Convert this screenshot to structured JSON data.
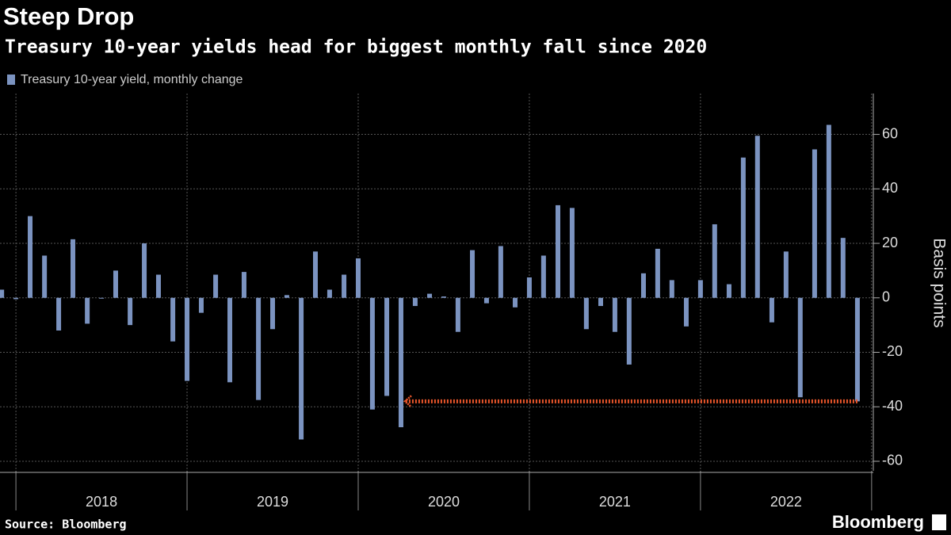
{
  "chart_data": {
    "type": "bar",
    "title": "Steep Drop",
    "subtitle": "Treasury 10-year yields head for biggest monthly fall since 2020",
    "y_axis_label": "Basis points",
    "source": "Source: Bloomberg",
    "logo": "Bloomberg",
    "series": [
      {
        "name": "Treasury 10-year yield, monthly change",
        "color": "#7b93c0",
        "values": [
          3,
          -0.5,
          30,
          15.5,
          -12,
          21.5,
          -9.5,
          -0.3,
          10,
          -10,
          20,
          8.5,
          -16,
          -30.5,
          -5.5,
          8.5,
          -31,
          9.5,
          -37.5,
          -11.5,
          1,
          -52,
          17,
          3,
          8.5,
          14.5,
          -41,
          -36,
          -47.5,
          -3,
          1.5,
          0.5,
          -12.5,
          17.5,
          -2,
          19,
          -3.5,
          7.5,
          15.5,
          34,
          33,
          -11.5,
          -3,
          -12.5,
          -24.5,
          9,
          18,
          6.5,
          -10.5,
          6.5,
          27,
          5,
          51.5,
          59.5,
          -9,
          17,
          -36.5,
          54.5,
          63.5,
          22,
          -38
        ]
      }
    ],
    "x": [
      2017.917,
      2018.0,
      2018.083,
      2018.167,
      2018.25,
      2018.333,
      2018.417,
      2018.5,
      2018.583,
      2018.667,
      2018.75,
      2018.833,
      2018.917,
      2019.0,
      2019.083,
      2019.167,
      2019.25,
      2019.333,
      2019.417,
      2019.5,
      2019.583,
      2019.667,
      2019.75,
      2019.833,
      2019.917,
      2020.0,
      2020.083,
      2020.167,
      2020.25,
      2020.333,
      2020.417,
      2020.5,
      2020.583,
      2020.667,
      2020.75,
      2020.833,
      2020.917,
      2021.0,
      2021.083,
      2021.167,
      2021.25,
      2021.333,
      2021.417,
      2021.5,
      2021.583,
      2021.667,
      2021.75,
      2021.833,
      2021.917,
      2022.0,
      2022.083,
      2022.167,
      2022.25,
      2022.333,
      2022.417,
      2022.5,
      2022.583,
      2022.667,
      2022.75,
      2022.833,
      2022.917
    ],
    "xlim": [
      2017.907,
      2023.01
    ],
    "xticks": [
      2018,
      2019,
      2020,
      2021,
      2022,
      2023
    ],
    "x_labels": [
      {
        "value": 2018.5,
        "label": "2018"
      },
      {
        "value": 2019.5,
        "label": "2019"
      },
      {
        "value": 2020.5,
        "label": "2020"
      },
      {
        "value": 2021.5,
        "label": "2021"
      },
      {
        "value": 2022.5,
        "label": "2022"
      }
    ],
    "ylim": [
      -63.5,
      75
    ],
    "yticks": [
      -60,
      -40,
      -20,
      0,
      20,
      40,
      60
    ],
    "grid": true,
    "annotation_line": {
      "y": -38,
      "x_start": 2022.917,
      "x_end": 2020.25,
      "color": "#e8552a"
    }
  }
}
